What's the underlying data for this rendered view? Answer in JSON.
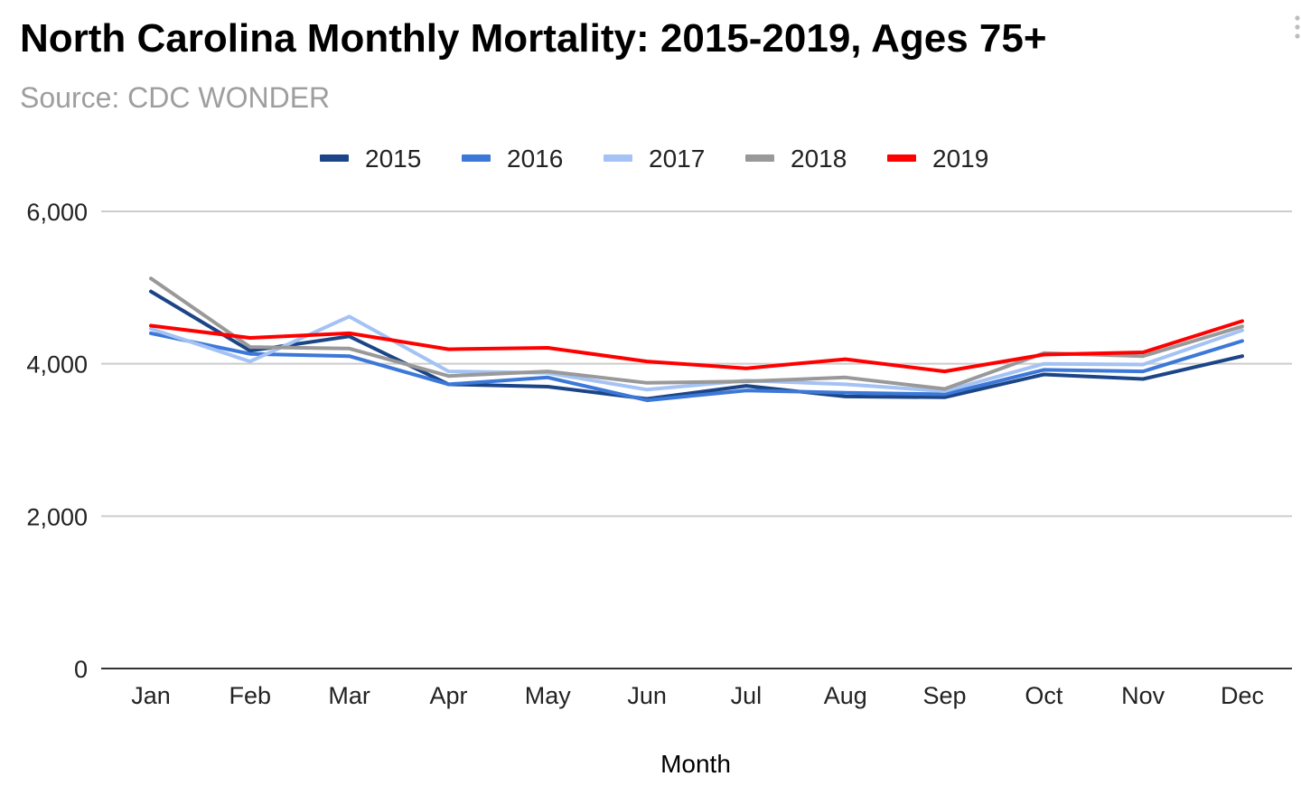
{
  "chart_data": {
    "type": "line",
    "title": "North Carolina Monthly Mortality: 2015-2019, Ages 75+",
    "subtitle": "Source: CDC WONDER",
    "xlabel": "Month",
    "ylabel": "",
    "ylim": [
      0,
      6000
    ],
    "yticks": [
      0,
      2000,
      4000,
      6000
    ],
    "ytick_labels": [
      "0",
      "2,000",
      "4,000",
      "6,000"
    ],
    "grid": true,
    "legend_position": "top-center",
    "categories": [
      "Jan",
      "Feb",
      "Mar",
      "Apr",
      "May",
      "Jun",
      "Jul",
      "Aug",
      "Sep",
      "Oct",
      "Nov",
      "Dec"
    ],
    "series": [
      {
        "name": "2015",
        "color": "#1c4587",
        "values": [
          4950,
          4170,
          4360,
          3730,
          3700,
          3540,
          3710,
          3570,
          3560,
          3860,
          3800,
          4100
        ]
      },
      {
        "name": "2016",
        "color": "#3c78d8",
        "values": [
          4400,
          4130,
          4100,
          3730,
          3820,
          3520,
          3650,
          3620,
          3600,
          3920,
          3900,
          4300
        ]
      },
      {
        "name": "2017",
        "color": "#a4c2f4",
        "values": [
          4460,
          4030,
          4620,
          3900,
          3880,
          3660,
          3780,
          3730,
          3640,
          4000,
          3990,
          4440
        ]
      },
      {
        "name": "2018",
        "color": "#999999",
        "values": [
          5120,
          4220,
          4200,
          3840,
          3900,
          3750,
          3770,
          3820,
          3670,
          4140,
          4100,
          4490
        ]
      },
      {
        "name": "2019",
        "color": "#ff0000",
        "values": [
          4500,
          4340,
          4400,
          4190,
          4210,
          4030,
          3940,
          4060,
          3900,
          4120,
          4150,
          4560
        ]
      }
    ]
  },
  "colors": {
    "gridline": "#cccccc",
    "axis": "#333333",
    "text": "#222222"
  }
}
